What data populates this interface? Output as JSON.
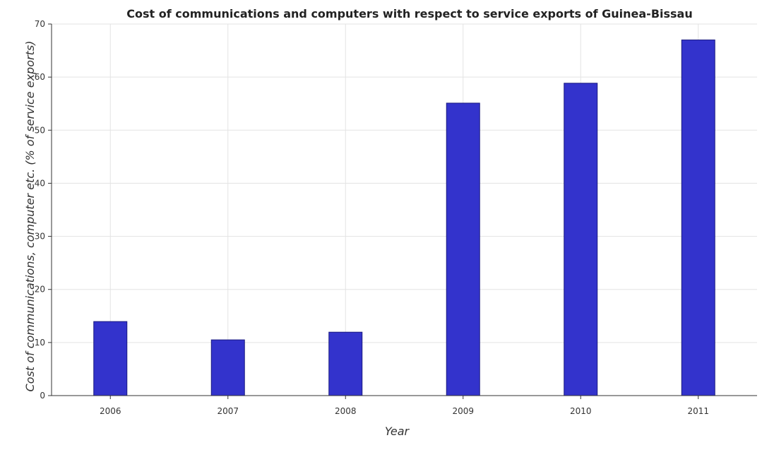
{
  "chart_data": {
    "type": "bar",
    "title": "Cost of communications and computers with respect to service exports of Guinea-Bissau",
    "xlabel": "Year",
    "ylabel": "Cost of communications, computer etc. (% of service exports)",
    "categories": [
      "2006",
      "2007",
      "2008",
      "2009",
      "2010",
      "2011"
    ],
    "values": [
      13.95,
      10.5,
      11.95,
      55.1,
      58.85,
      67.0
    ],
    "ylim": [
      0,
      70
    ],
    "yticks": [
      0,
      10,
      20,
      30,
      40,
      50,
      60,
      70
    ],
    "grid": true,
    "colors": {
      "bar": "#3333cc",
      "bar_edge": "#1a1a80"
    }
  }
}
